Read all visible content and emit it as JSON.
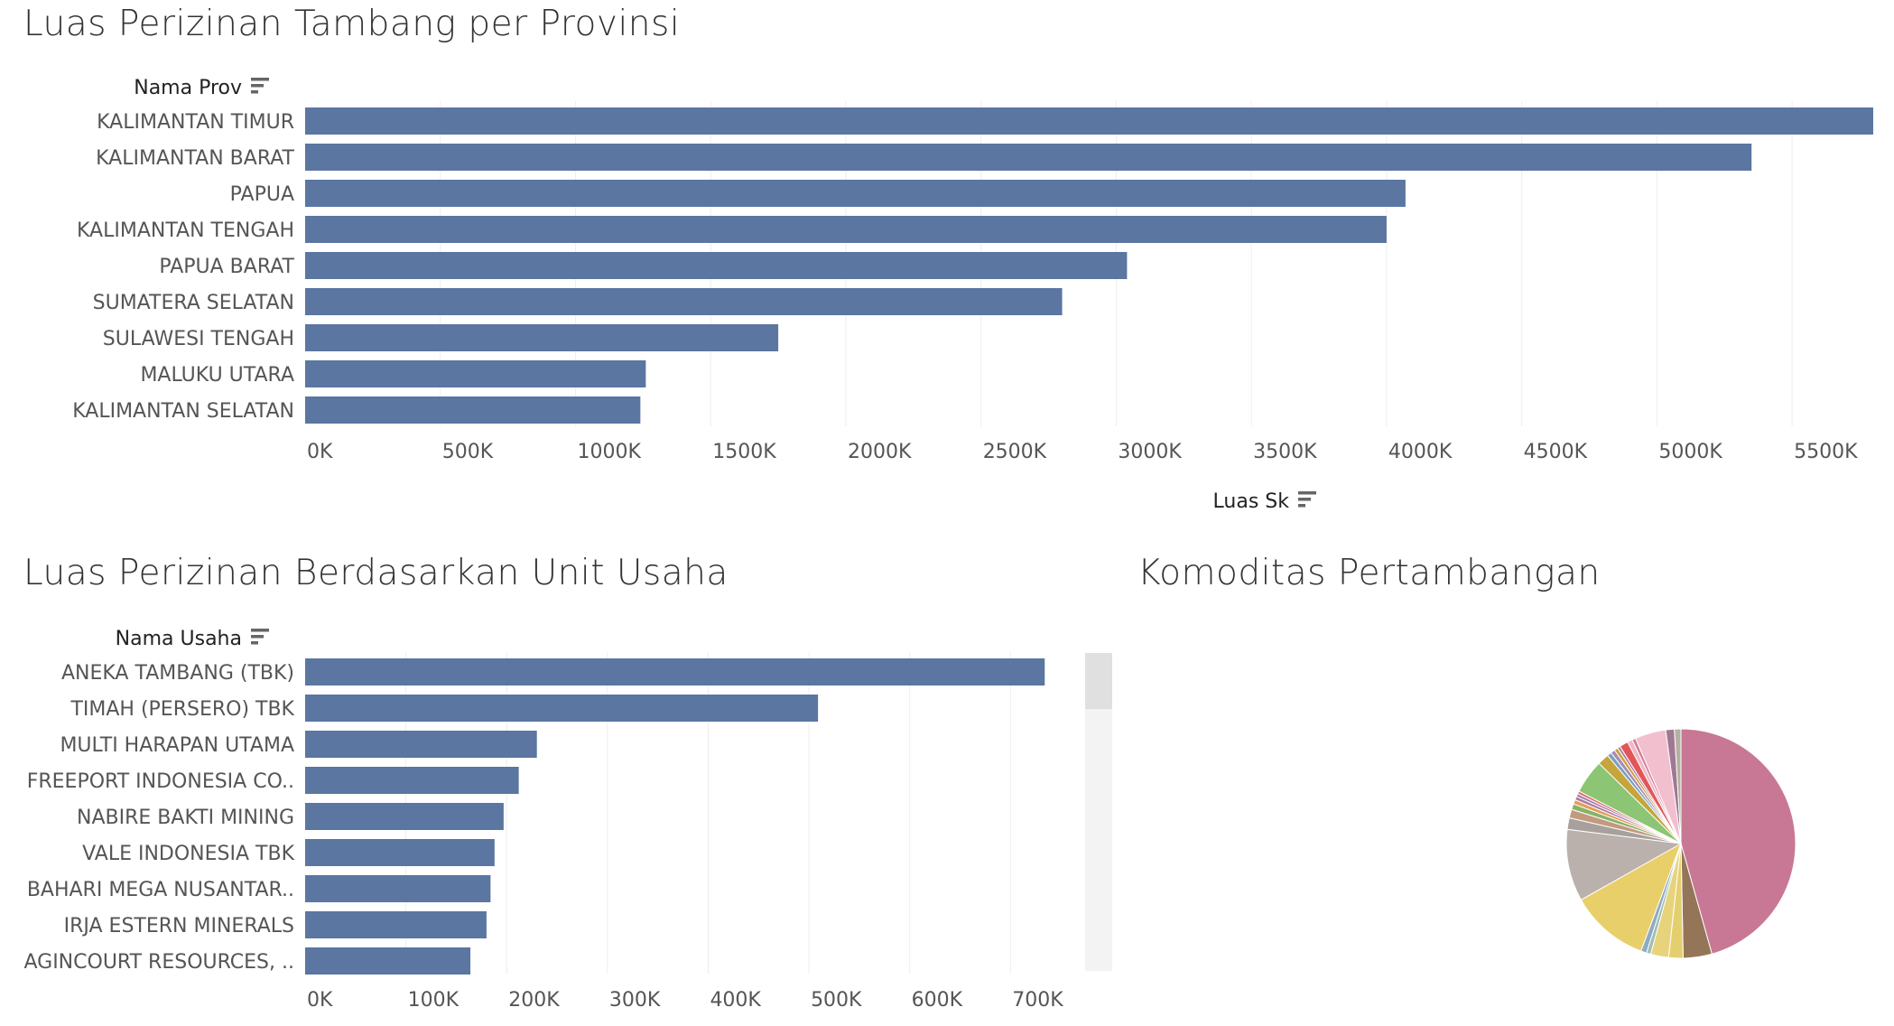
{
  "colors": {
    "bar": "#5a76a1",
    "grid": "#eeeeee",
    "text": "#555555",
    "title": "#333333",
    "scrollbar_track": "#f3f3f3",
    "scrollbar_thumb": "#e0e0e0"
  },
  "icons": {
    "sort": "sort-descending-icon"
  },
  "chart_data": [
    {
      "type": "bar",
      "orientation": "horizontal",
      "title": "Luas Perizinan Tambang per Provinsi",
      "ylabel": "Nama Prov",
      "xlabel": "Luas Sk",
      "categories": [
        "KALIMANTAN TIMUR",
        "KALIMANTAN BARAT",
        "PAPUA",
        "KALIMANTAN TENGAH",
        "PAPUA BARAT",
        "SUMATERA SELATAN",
        "SULAWESI TENGAH",
        "MALUKU UTARA",
        "KALIMANTAN SELATAN"
      ],
      "values": [
        5800000,
        5350000,
        4070000,
        4000000,
        3040000,
        2800000,
        1750000,
        1260000,
        1240000
      ],
      "xlim": [
        0,
        5750000
      ],
      "xticks": [
        0,
        500000,
        1000000,
        1500000,
        2000000,
        2500000,
        3000000,
        3500000,
        4000000,
        4500000,
        5000000,
        5500000
      ],
      "xtick_labels": [
        "0K",
        "500K",
        "1000K",
        "1500K",
        "2000K",
        "2500K",
        "3000K",
        "3500K",
        "4000K",
        "4500K",
        "5000K",
        "5500K"
      ],
      "grid": true
    },
    {
      "type": "bar",
      "orientation": "horizontal",
      "title": "Luas Perizinan Berdasarkan Unit Usaha",
      "ylabel": "Nama Usaha",
      "xlabel": "",
      "categories": [
        "ANEKA TAMBANG (TBK)",
        "TIMAH (PERSERO) TBK",
        "MULTI HARAPAN UTAMA",
        "FREEPORT INDONESIA CO..",
        "NABIRE BAKTI MINING",
        "VALE INDONESIA TBK",
        "BAHARI MEGA NUSANTAR..",
        "IRJA ESTERN MINERALS",
        "AGINCOURT RESOURCES, .."
      ],
      "values": [
        734000,
        509000,
        230000,
        212000,
        197000,
        188000,
        184000,
        180000,
        164000
      ],
      "xlim": [
        0,
        775000
      ],
      "xticks": [
        0,
        100000,
        200000,
        300000,
        400000,
        500000,
        600000,
        700000
      ],
      "xtick_labels": [
        "0K",
        "100K",
        "200K",
        "300K",
        "400K",
        "500K",
        "600K",
        "700K"
      ],
      "grid": true,
      "scrollbar": true
    },
    {
      "type": "pie",
      "title": "Komoditas Pertambangan",
      "values": [
        45,
        4,
        2,
        2.5,
        0.6,
        0.8,
        11,
        10,
        1.6,
        1.2,
        0.8,
        0.6,
        0.5,
        0.4,
        0.4,
        4.7,
        1.6,
        0.6,
        0.6,
        0.5,
        0.4,
        1.2,
        0.7,
        0.5,
        4.3,
        1.2,
        0.9
      ],
      "colors": [
        "#c87894",
        "#957558",
        "#e4cf6f",
        "#e8d37d",
        "#9ebfb5",
        "#8dabc2",
        "#e8cf6a",
        "#bab0ac",
        "#a7a09c",
        "#c29a7e",
        "#87b26b",
        "#e49d52",
        "#b07aa1",
        "#9d7ba7",
        "#e36f72",
        "#8cc573",
        "#c5a53c",
        "#7da0c0",
        "#a58bb5",
        "#c9a13a",
        "#b07aa1",
        "#e15759",
        "#f0b8c7",
        "#d47d9a",
        "#f2bfcf",
        "#a07894",
        "#b5b0a0"
      ]
    }
  ]
}
